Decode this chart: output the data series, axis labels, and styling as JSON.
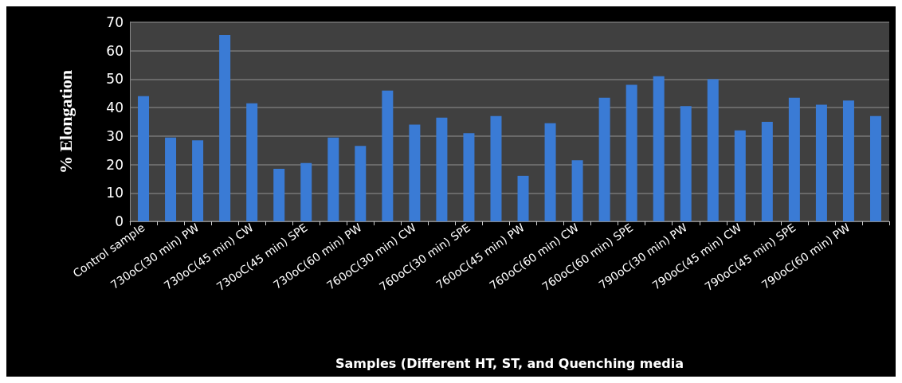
{
  "chart_data": {
    "type": "bar",
    "xlabel": "Samples (Different HT, ST, and Quenching media",
    "ylabel": "% Elongation",
    "categories": [
      "Control sample",
      null,
      "730oC(30 min) PW",
      null,
      "730oC(45 min) CW",
      null,
      "730oC(45 min) SPE",
      null,
      "730oC(60 min) PW",
      null,
      "760oC(30 min) CW",
      null,
      "760oC(30 min) SPE",
      null,
      "760oC(45 min) PW",
      null,
      "760oC(60 min) CW",
      null,
      "760oC(60 min) SPE",
      null,
      "790oC(30 min) PW",
      null,
      "790oC(45 min) CW",
      null,
      "790oC(45 min) SPE",
      null,
      "790oC(60 min) PW",
      null
    ],
    "values": [
      44,
      29.5,
      28.5,
      65.5,
      41.5,
      18.5,
      20.5,
      29.5,
      26.5,
      46,
      34,
      36.5,
      31,
      37,
      16,
      34.5,
      21.5,
      43.5,
      48,
      51,
      40.5,
      50,
      32,
      35,
      43.5,
      41,
      42.5,
      37
    ],
    "color": "#3a7bd5",
    "ylim": [
      0,
      70
    ],
    "yticks": [
      0,
      10,
      20,
      30,
      40,
      50,
      60,
      70
    ],
    "grid": "y"
  }
}
